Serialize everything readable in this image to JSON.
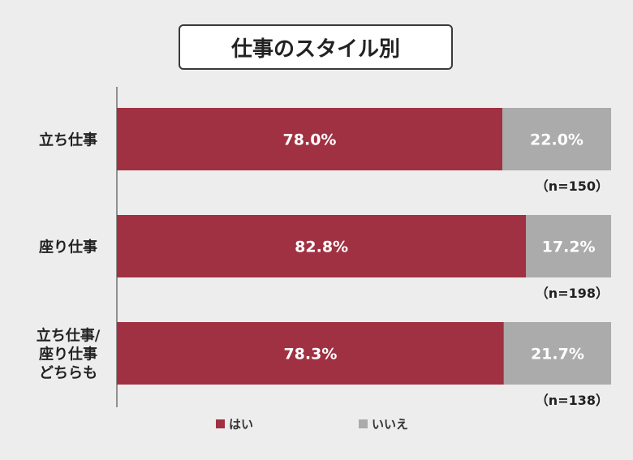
{
  "title": "仕事のスタイル別",
  "colors": {
    "yes": "#a03142",
    "no": "#ababab",
    "axis": "#333333"
  },
  "chart_data": {
    "type": "bar",
    "orientation": "horizontal",
    "stacked": true,
    "percent": true,
    "title": "仕事のスタイル別",
    "categories": [
      [
        "立ち仕事"
      ],
      [
        "座り仕事"
      ],
      [
        "立ち仕事/",
        "座り仕事",
        "どちらも"
      ]
    ],
    "series": [
      {
        "name": "はい",
        "values": [
          78.0,
          82.8,
          78.3
        ],
        "labels": [
          "78.0%",
          "82.8%",
          "78.3%"
        ]
      },
      {
        "name": "いいえ",
        "values": [
          22.0,
          17.2,
          21.7
        ],
        "labels": [
          "22.0%",
          "17.2%",
          "21.7%"
        ]
      }
    ],
    "sample_sizes": [
      "（n=150）",
      "（n=198）",
      "（n=138）"
    ],
    "xlim": [
      0,
      100
    ],
    "legend_position": "bottom",
    "grid": false
  }
}
